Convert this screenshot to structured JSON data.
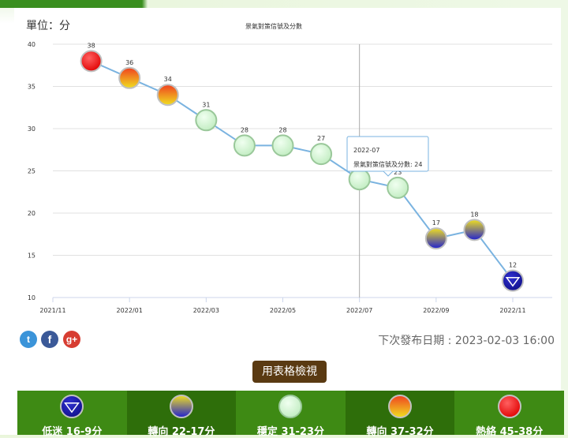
{
  "unit_label": "單位：分",
  "chart_data": {
    "type": "line",
    "title": "景氣對策信號及分數",
    "x": [
      "2021/12",
      "2022/01",
      "2022/02",
      "2022/03",
      "2022/04",
      "2022/05",
      "2022/06",
      "2022/07",
      "2022/08",
      "2022/09",
      "2022/10",
      "2022/11"
    ],
    "values": [
      38,
      36,
      34,
      31,
      28,
      28,
      27,
      24,
      23,
      17,
      18,
      12
    ],
    "signals": [
      "red",
      "yellow-red",
      "yellow-red",
      "green",
      "green",
      "green",
      "green",
      "green",
      "green",
      "yellow-blue",
      "yellow-blue",
      "blue"
    ],
    "x_ticks": [
      "2021/11",
      "2022/01",
      "2022/03",
      "2022/05",
      "2022/07",
      "2022/09",
      "2022/11"
    ],
    "y_ticks": [
      10,
      15,
      20,
      25,
      30,
      35,
      40
    ],
    "ylim": [
      10,
      40
    ],
    "grid": true,
    "line_color": "#7ab3e0",
    "tooltip": {
      "date": "2022-07",
      "text": "景氣對策信號及分數: 24"
    }
  },
  "share": {
    "twitter": "t",
    "facebook": "f",
    "googleplus": "g+"
  },
  "next_release": "下次發布日期 : 2023-02-03 16:00",
  "table_button": "用表格檢視",
  "legend": [
    {
      "signal": "blue",
      "label": "低迷 16-9分"
    },
    {
      "signal": "yellow-blue",
      "label": "轉向 22-17分"
    },
    {
      "signal": "green",
      "label": "穩定 31-23分"
    },
    {
      "signal": "yellow-red",
      "label": "轉向 37-32分"
    },
    {
      "signal": "red",
      "label": "熱絡 45-38分"
    }
  ],
  "colors": {
    "red": "#e02020",
    "green": "#c8f0c8",
    "blue": "#2020b0",
    "yellow": "#f0e020",
    "orange": "#f08020"
  }
}
